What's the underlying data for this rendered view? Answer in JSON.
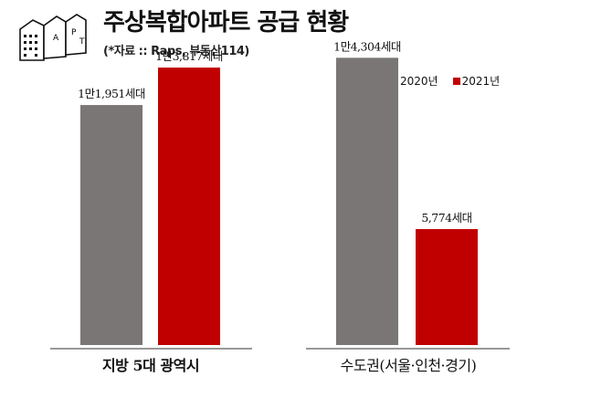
{
  "header": {
    "title": "주상복합아파트 공급 현황",
    "source": "(*자료 :: Raps, 부동산114)",
    "logo_letters": [
      "A",
      "P",
      "T"
    ]
  },
  "legend": [
    {
      "label": "2020년",
      "color": "#7a7676"
    },
    {
      "label": "2021년",
      "color": "#c00000"
    }
  ],
  "chart_data": {
    "type": "bar",
    "categories": [
      "지방 5대 광역시",
      "수도권(서울·인천·경기)"
    ],
    "series": [
      {
        "name": "2020년",
        "values": [
          11951,
          14304
        ],
        "labels": [
          "1만1,951세대",
          "1만4,304세대"
        ],
        "color": "#7a7676"
      },
      {
        "name": "2021년",
        "values": [
          13817,
          5774
        ],
        "labels": [
          "1만3,817세대",
          "5,774세대"
        ],
        "color": "#c00000"
      }
    ],
    "ylim": [
      0,
      16000
    ],
    "grid": false,
    "legend_position": "top-right"
  }
}
